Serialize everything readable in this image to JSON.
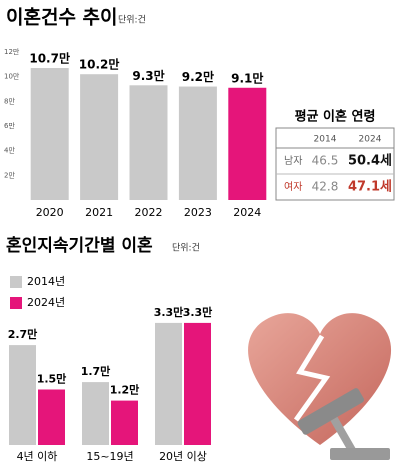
{
  "chart_data": [
    {
      "type": "bar",
      "title": "이혼건수 추이",
      "unit": "단위:건",
      "categories": [
        "2020",
        "2021",
        "2022",
        "2023",
        "2024"
      ],
      "values": [
        10.7,
        10.2,
        9.3,
        9.2,
        9.1
      ],
      "value_labels": [
        "10.7만",
        "10.2만",
        "9.3만",
        "9.2만",
        "9.1만"
      ],
      "colors": [
        "#c9c9c9",
        "#c9c9c9",
        "#c9c9c9",
        "#c9c9c9",
        "#e5157a"
      ],
      "ylim": [
        0,
        12
      ],
      "yticks": [
        {
          "value": 2,
          "label": "2만"
        },
        {
          "value": 4,
          "label": "4만"
        },
        {
          "value": 6,
          "label": "6만"
        },
        {
          "value": 8,
          "label": "8만"
        },
        {
          "value": 10,
          "label": "10만"
        },
        {
          "value": 12,
          "label": "12만"
        }
      ]
    },
    {
      "type": "grouped-bar",
      "title": "혼인지속기간별 이혼",
      "unit": "단위:건",
      "categories": [
        "4년 이하",
        "15~19년",
        "20년 이상"
      ],
      "series": [
        {
          "name": "2014년",
          "color": "#c9c9c9",
          "values": [
            2.7,
            1.7,
            3.3
          ],
          "value_labels": [
            "2.7만",
            "1.7만",
            "3.3만"
          ]
        },
        {
          "name": "2024년",
          "color": "#e5157a",
          "values": [
            1.5,
            1.2,
            3.3
          ],
          "value_labels": [
            "1.5만",
            "1.2만",
            "3.3만"
          ]
        }
      ]
    }
  ],
  "table": {
    "title": "평균 이혼 연령",
    "columns": [
      "2014",
      "2024"
    ],
    "rows": [
      [
        "남자",
        "46.5",
        "50.4세"
      ],
      [
        "여자",
        "42.8",
        "47.1세"
      ]
    ]
  }
}
